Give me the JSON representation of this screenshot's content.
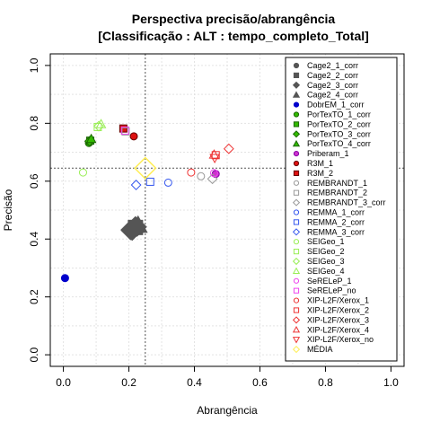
{
  "chart_data": {
    "type": "scatter",
    "title_line1": "Perspectiva precisão/abrangência",
    "title_line2": "[Classificação : ALT : tempo_completo_Total]",
    "xlabel": "Abrangência",
    "ylabel": "Precisão",
    "xlim": [
      0,
      1
    ],
    "ylim": [
      0,
      1
    ],
    "x_ticks": [
      "0.0",
      "0.2",
      "0.4",
      "0.6",
      "0.8",
      "1.0"
    ],
    "y_ticks": [
      "0.0",
      "0.2",
      "0.4",
      "0.6",
      "0.8",
      "1.0"
    ],
    "grid": true,
    "legend_position": "right",
    "reference_lines": {
      "x": 0.25,
      "y": 0.645
    },
    "series": [
      {
        "name": "Cage2_1_corr",
        "shape": "circle",
        "color": "#555555",
        "fill": "#555555",
        "points": [
          [
            0.215,
            0.435
          ]
        ]
      },
      {
        "name": "Cage2_2_corr",
        "shape": "square",
        "color": "#555555",
        "fill": "#555555",
        "points": [
          [
            0.22,
            0.44
          ]
        ]
      },
      {
        "name": "Cage2_3_corr",
        "shape": "diamond",
        "color": "#555555",
        "fill": "#555555",
        "points": [
          [
            0.205,
            0.43
          ]
        ]
      },
      {
        "name": "Cage2_4_corr",
        "shape": "triangle",
        "color": "#555555",
        "fill": "#555555",
        "points": [
          [
            0.228,
            0.448
          ]
        ]
      },
      {
        "name": "DobrEM_1_corr",
        "shape": "circle",
        "color": "#0000cc",
        "fill": "#0000cc",
        "points": [
          [
            0.005,
            0.265
          ]
        ]
      },
      {
        "name": "PorTexTO_1_corr",
        "shape": "circle",
        "color": "#1a6600",
        "fill": "#33bb00",
        "points": [
          [
            0.078,
            0.732
          ]
        ]
      },
      {
        "name": "PorTexTO_2_corr",
        "shape": "square",
        "color": "#1a6600",
        "fill": "#33bb00",
        "points": [
          [
            0.082,
            0.74
          ]
        ]
      },
      {
        "name": "PorTexTO_3_corr",
        "shape": "diamond",
        "color": "#1a6600",
        "fill": "#33bb00",
        "points": [
          [
            0.08,
            0.738
          ]
        ]
      },
      {
        "name": "PorTexTO_4_corr",
        "shape": "triangle",
        "color": "#1a6600",
        "fill": "#33bb00",
        "points": [
          [
            0.085,
            0.746
          ]
        ]
      },
      {
        "name": "Priberam_1",
        "shape": "circle",
        "color": "#8800aa",
        "fill": "#cc33cc",
        "points": [
          [
            0.465,
            0.625
          ]
        ]
      },
      {
        "name": "R3M_1",
        "shape": "circle",
        "color": "#660000",
        "fill": "#dd1111",
        "points": [
          [
            0.215,
            0.755
          ]
        ]
      },
      {
        "name": "R3M_2",
        "shape": "square",
        "color": "#660000",
        "fill": "#dd1111",
        "points": [
          [
            0.183,
            0.782
          ]
        ]
      },
      {
        "name": "REMBRANDT_1",
        "shape": "circle",
        "color": "#999999",
        "fill": "none",
        "points": [
          [
            0.42,
            0.617
          ]
        ]
      },
      {
        "name": "REMBRANDT_2",
        "shape": "square",
        "color": "#999999",
        "fill": "none",
        "points": [
          [
            0.19,
            0.772
          ]
        ]
      },
      {
        "name": "REMBRANDT_3_corr",
        "shape": "diamond",
        "color": "#999999",
        "fill": "none",
        "points": [
          [
            0.455,
            0.608
          ]
        ]
      },
      {
        "name": "REMMA_1_corr",
        "shape": "circle",
        "color": "#3355ee",
        "fill": "none",
        "points": [
          [
            0.32,
            0.595
          ]
        ]
      },
      {
        "name": "REMMA_2_corr",
        "shape": "square",
        "color": "#3355ee",
        "fill": "none",
        "points": [
          [
            0.265,
            0.598
          ]
        ]
      },
      {
        "name": "REMMA_3_corr",
        "shape": "diamond",
        "color": "#3355ee",
        "fill": "none",
        "points": [
          [
            0.222,
            0.587
          ]
        ]
      },
      {
        "name": "SEIGeo_1",
        "shape": "circle",
        "color": "#99ee55",
        "fill": "none",
        "points": [
          [
            0.06,
            0.63
          ]
        ]
      },
      {
        "name": "SEIGeo_2",
        "shape": "square",
        "color": "#99ee55",
        "fill": "none",
        "points": [
          [
            0.105,
            0.787
          ]
        ]
      },
      {
        "name": "SEIGeo_3",
        "shape": "diamond",
        "color": "#99ee55",
        "fill": "none",
        "points": [
          [
            0.108,
            0.79
          ]
        ]
      },
      {
        "name": "SEIGeo_4",
        "shape": "triangle",
        "color": "#99ee55",
        "fill": "none",
        "points": [
          [
            0.115,
            0.797
          ]
        ]
      },
      {
        "name": "SeRELeP_1",
        "shape": "circle",
        "color": "#ee44ee",
        "fill": "none",
        "points": [
          [
            0.46,
            0.628
          ]
        ]
      },
      {
        "name": "SeRELeP_no",
        "shape": "square",
        "color": "#ee44ee",
        "fill": "none",
        "points": [
          [
            0.188,
            0.775
          ]
        ]
      },
      {
        "name": "XIP-L2F/Xerox_1",
        "shape": "circle",
        "color": "#ee3333",
        "fill": "none",
        "points": [
          [
            0.39,
            0.63
          ]
        ]
      },
      {
        "name": "XIP-L2F/Xerox_2",
        "shape": "square",
        "color": "#ee3333",
        "fill": "none",
        "points": [
          [
            0.465,
            0.69
          ]
        ]
      },
      {
        "name": "XIP-L2F/Xerox_3",
        "shape": "diamond",
        "color": "#ee3333",
        "fill": "none",
        "points": [
          [
            0.505,
            0.712
          ]
        ]
      },
      {
        "name": "XIP-L2F/Xerox_4",
        "shape": "triangle",
        "color": "#ee3333",
        "fill": "none",
        "points": [
          [
            0.46,
            0.692
          ]
        ]
      },
      {
        "name": "XIP-L2F/Xerox_no",
        "shape": "triangle-down",
        "color": "#ee3333",
        "fill": "none",
        "points": [
          [
            0.462,
            0.68
          ]
        ]
      },
      {
        "name": "MÉDIA",
        "shape": "diamond-large",
        "color": "#ffee55",
        "fill": "none",
        "points": [
          [
            0.25,
            0.645
          ]
        ]
      }
    ],
    "cage_cluster_extra": [
      [
        0.205,
        0.432
      ],
      [
        0.21,
        0.428
      ],
      [
        0.22,
        0.445
      ],
      [
        0.225,
        0.442
      ]
    ],
    "colors": {
      "grid": "#e3e3e3",
      "refline": "#555555",
      "axis": "#000000"
    }
  }
}
